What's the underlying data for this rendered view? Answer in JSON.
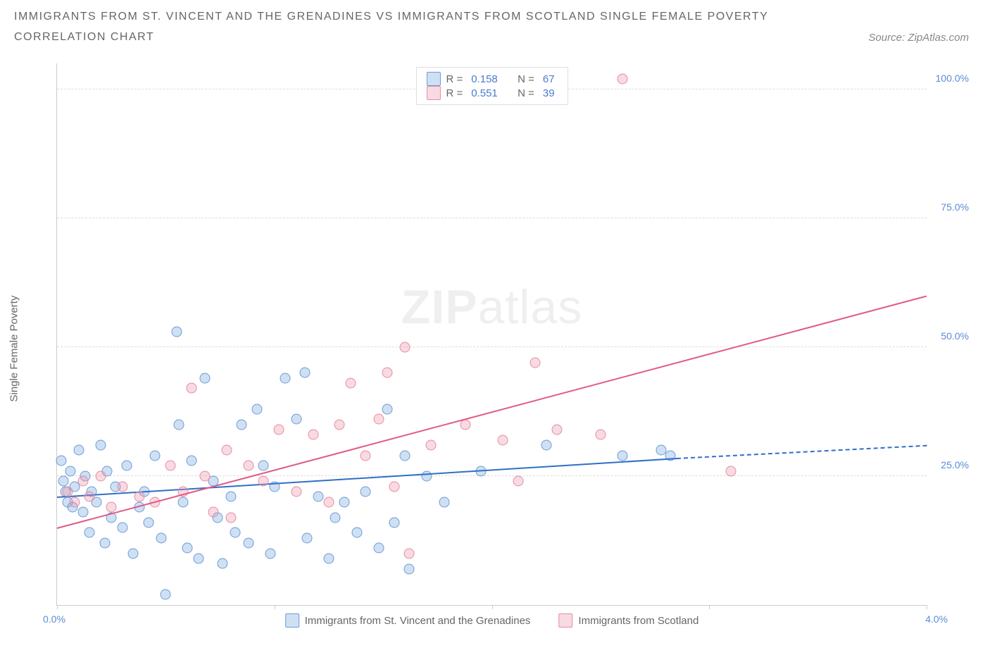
{
  "title_line1": "IMMIGRANTS FROM ST. VINCENT AND THE GRENADINES VS IMMIGRANTS FROM SCOTLAND SINGLE FEMALE POVERTY",
  "title_line2": "CORRELATION CHART",
  "source_prefix": "Source: ",
  "source_name": "ZipAtlas.com",
  "watermark_bold": "ZIP",
  "watermark_light": "atlas",
  "y_axis_label": "Single Female Poverty",
  "chart": {
    "type": "scatter",
    "xlim": [
      0.0,
      4.0
    ],
    "ylim": [
      0.0,
      105.0
    ],
    "x_ticks": [
      0.0,
      1.0,
      2.0,
      3.0,
      4.0
    ],
    "x_range_min_label": "0.0%",
    "x_range_max_label": "4.0%",
    "y_ticks": [
      25.0,
      50.0,
      75.0,
      100.0
    ],
    "y_tick_labels": [
      "25.0%",
      "50.0%",
      "75.0%",
      "100.0%"
    ],
    "grid_color": "#dddddd",
    "background_color": "#ffffff",
    "marker_size": 15,
    "series": [
      {
        "name": "Immigrants from St. Vincent and the Grenadines",
        "fill_color": "rgba(120,165,220,0.35)",
        "stroke_color": "#6a9bd8",
        "trend_color": "#2f6fc7",
        "R_label": "R =",
        "R": "0.158",
        "N_label": "N =",
        "N": "67",
        "trend": {
          "x1": 0.0,
          "y1": 21.0,
          "x2": 2.85,
          "y2": 28.5,
          "dash_x2": 4.0,
          "dash_y2": 31.0
        },
        "points": [
          [
            0.02,
            28
          ],
          [
            0.03,
            24
          ],
          [
            0.04,
            22
          ],
          [
            0.05,
            20
          ],
          [
            0.06,
            26
          ],
          [
            0.07,
            19
          ],
          [
            0.08,
            23
          ],
          [
            0.1,
            30
          ],
          [
            0.12,
            18
          ],
          [
            0.13,
            25
          ],
          [
            0.15,
            14
          ],
          [
            0.16,
            22
          ],
          [
            0.18,
            20
          ],
          [
            0.2,
            31
          ],
          [
            0.22,
            12
          ],
          [
            0.23,
            26
          ],
          [
            0.25,
            17
          ],
          [
            0.27,
            23
          ],
          [
            0.3,
            15
          ],
          [
            0.32,
            27
          ],
          [
            0.35,
            10
          ],
          [
            0.38,
            19
          ],
          [
            0.4,
            22
          ],
          [
            0.42,
            16
          ],
          [
            0.45,
            29
          ],
          [
            0.48,
            13
          ],
          [
            0.5,
            2
          ],
          [
            0.55,
            53
          ],
          [
            0.56,
            35
          ],
          [
            0.58,
            20
          ],
          [
            0.6,
            11
          ],
          [
            0.62,
            28
          ],
          [
            0.65,
            9
          ],
          [
            0.68,
            44
          ],
          [
            0.72,
            24
          ],
          [
            0.74,
            17
          ],
          [
            0.76,
            8
          ],
          [
            0.8,
            21
          ],
          [
            0.82,
            14
          ],
          [
            0.85,
            35
          ],
          [
            0.88,
            12
          ],
          [
            0.92,
            38
          ],
          [
            0.95,
            27
          ],
          [
            0.98,
            10
          ],
          [
            1.0,
            23
          ],
          [
            1.05,
            44
          ],
          [
            1.1,
            36
          ],
          [
            1.14,
            45
          ],
          [
            1.15,
            13
          ],
          [
            1.2,
            21
          ],
          [
            1.25,
            9
          ],
          [
            1.28,
            17
          ],
          [
            1.32,
            20
          ],
          [
            1.38,
            14
          ],
          [
            1.42,
            22
          ],
          [
            1.48,
            11
          ],
          [
            1.52,
            38
          ],
          [
            1.55,
            16
          ],
          [
            1.6,
            29
          ],
          [
            1.62,
            7
          ],
          [
            1.7,
            25
          ],
          [
            1.78,
            20
          ],
          [
            1.95,
            26
          ],
          [
            2.25,
            31
          ],
          [
            2.6,
            29
          ],
          [
            2.78,
            30
          ],
          [
            2.82,
            29
          ]
        ]
      },
      {
        "name": "Immigrants from Scotland",
        "fill_color": "rgba(235,150,170,0.35)",
        "stroke_color": "#e88ba3",
        "trend_color": "#e05b84",
        "R_label": "R =",
        "R": "0.551",
        "N_label": "N =",
        "N": "39",
        "trend": {
          "x1": 0.0,
          "y1": 15.0,
          "x2": 4.0,
          "y2": 60.0
        },
        "points": [
          [
            0.05,
            22
          ],
          [
            0.08,
            20
          ],
          [
            0.12,
            24
          ],
          [
            0.15,
            21
          ],
          [
            0.2,
            25
          ],
          [
            0.25,
            19
          ],
          [
            0.3,
            23
          ],
          [
            0.38,
            21
          ],
          [
            0.45,
            20
          ],
          [
            0.52,
            27
          ],
          [
            0.58,
            22
          ],
          [
            0.62,
            42
          ],
          [
            0.68,
            25
          ],
          [
            0.72,
            18
          ],
          [
            0.78,
            30
          ],
          [
            0.8,
            17
          ],
          [
            0.88,
            27
          ],
          [
            0.95,
            24
          ],
          [
            1.02,
            34
          ],
          [
            1.1,
            22
          ],
          [
            1.18,
            33
          ],
          [
            1.25,
            20
          ],
          [
            1.3,
            35
          ],
          [
            1.35,
            43
          ],
          [
            1.42,
            29
          ],
          [
            1.48,
            36
          ],
          [
            1.52,
            45
          ],
          [
            1.55,
            23
          ],
          [
            1.6,
            50
          ],
          [
            1.62,
            10
          ],
          [
            1.72,
            31
          ],
          [
            1.88,
            35
          ],
          [
            2.05,
            32
          ],
          [
            2.12,
            24
          ],
          [
            2.2,
            47
          ],
          [
            2.3,
            34
          ],
          [
            2.5,
            33
          ],
          [
            2.6,
            102
          ],
          [
            3.1,
            26
          ]
        ]
      }
    ]
  }
}
